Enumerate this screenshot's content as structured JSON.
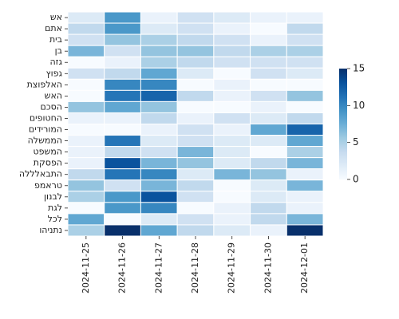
{
  "chart_data": {
    "type": "heatmap",
    "title": "",
    "xlabel": "",
    "ylabel": "",
    "x_labels": [
      "2024-11-25",
      "2024-11-26",
      "2024-11-27",
      "2024-11-28",
      "2024-11-29",
      "2024-11-30",
      "2024-12-01"
    ],
    "y_labels": [
      "אש",
      "אתם",
      "בית",
      "בן",
      "גזה",
      "גפוץ",
      "האלפוצת",
      "האש",
      "הסכם",
      "החטופים",
      "המורידים",
      "הממשלה",
      "המשפט",
      "הפסקת",
      "התבאלללה",
      "טראמפ",
      "לבנון",
      "לגת",
      "לכל",
      "נתניהו"
    ],
    "values": [
      [
        2,
        9,
        1,
        3,
        2,
        1,
        1
      ],
      [
        4,
        9,
        2,
        3,
        1,
        0,
        4
      ],
      [
        3,
        6,
        5,
        4,
        3,
        1,
        3
      ],
      [
        7,
        3,
        6,
        6,
        4,
        5,
        5
      ],
      [
        0,
        1,
        5,
        4,
        3,
        3,
        3
      ],
      [
        3,
        4,
        8,
        2,
        0,
        3,
        2
      ],
      [
        0,
        10,
        10,
        0,
        1,
        0,
        0
      ],
      [
        0,
        11,
        12,
        4,
        1,
        3,
        6
      ],
      [
        6,
        8,
        6,
        0,
        0,
        1,
        0
      ],
      [
        1,
        1,
        4,
        1,
        3,
        2,
        4
      ],
      [
        0,
        0,
        1,
        3,
        1,
        8,
        12
      ],
      [
        1,
        11,
        2,
        3,
        2,
        2,
        8
      ],
      [
        1,
        4,
        3,
        7,
        2,
        0,
        5
      ],
      [
        1,
        13,
        7,
        6,
        2,
        4,
        7
      ],
      [
        4,
        11,
        10,
        2,
        7,
        6,
        1
      ],
      [
        6,
        3,
        7,
        4,
        0,
        2,
        7
      ],
      [
        5,
        9,
        13,
        3,
        0,
        2,
        1
      ],
      [
        0,
        9,
        10,
        0,
        1,
        4,
        1
      ],
      [
        8,
        0,
        2,
        3,
        1,
        4,
        7
      ],
      [
        5,
        15,
        8,
        4,
        2,
        1,
        15
      ]
    ],
    "vmin": 0,
    "vmax": 15,
    "colorbar_ticks": [
      "0",
      "5",
      "10",
      "15"
    ],
    "colormap": "Blues",
    "color_low": "#f7fbff",
    "color_high": "#08306b",
    "gridlines": "white"
  }
}
